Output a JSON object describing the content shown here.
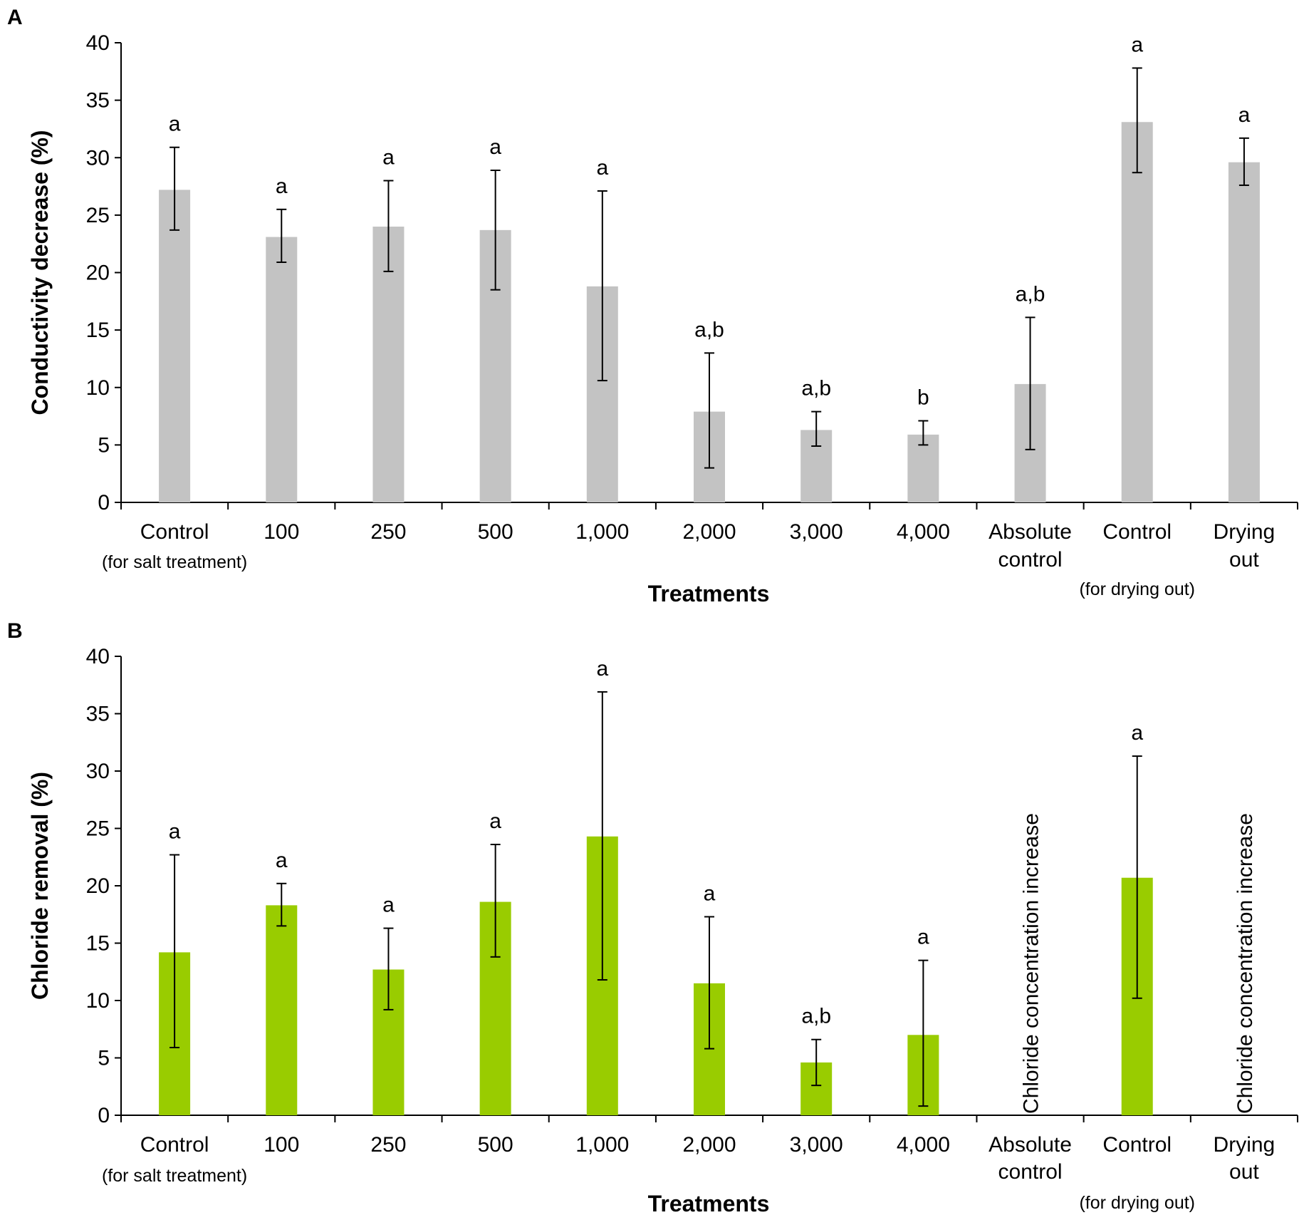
{
  "chart_data": [
    {
      "panel": "A",
      "type": "bar",
      "ylabel": "Conductivity decrease (%)",
      "xlabel": "Treatments",
      "ylim": [
        0,
        40
      ],
      "yticks": [
        0,
        5,
        10,
        15,
        20,
        25,
        30,
        35,
        40
      ],
      "bar_color": "#c3c3c3",
      "categories": [
        "Control",
        "100",
        "250",
        "500",
        "1,000",
        "2,000",
        "3,000",
        "4,000",
        "Absolute\ncontrol",
        "Control",
        "Drying\nout"
      ],
      "group_labels": [
        {
          "text": "(for salt treatment)",
          "category_index": 0
        },
        {
          "text": "(for drying out)",
          "category_index": 9
        }
      ],
      "values": [
        27.2,
        23.1,
        24.0,
        23.7,
        18.8,
        7.9,
        6.3,
        5.9,
        10.3,
        33.1,
        29.6
      ],
      "err_low": [
        23.7,
        20.9,
        20.1,
        18.5,
        10.6,
        3.0,
        4.9,
        5.0,
        4.6,
        28.7,
        27.6
      ],
      "err_high": [
        30.9,
        25.5,
        28.0,
        28.9,
        27.1,
        13.0,
        7.9,
        7.1,
        16.1,
        37.8,
        31.7
      ],
      "sig": [
        "a",
        "a",
        "a",
        "a",
        "a",
        "a,b",
        "a,b",
        "b",
        "a,b",
        "a",
        "a"
      ],
      "notes": []
    },
    {
      "panel": "B",
      "type": "bar",
      "ylabel": "Chloride removal (%)",
      "xlabel": "Treatments",
      "ylim": [
        0,
        40
      ],
      "yticks": [
        0,
        5,
        10,
        15,
        20,
        25,
        30,
        35,
        40
      ],
      "bar_color": "#99cc00",
      "categories": [
        "Control",
        "100",
        "250",
        "500",
        "1,000",
        "2,000",
        "3,000",
        "4,000",
        "Absolute\ncontrol",
        "Control",
        "Drying\nout"
      ],
      "group_labels": [
        {
          "text": "(for salt treatment)",
          "category_index": 0
        },
        {
          "text": "(for drying out)",
          "category_index": 9
        }
      ],
      "values": [
        14.2,
        18.3,
        12.7,
        18.6,
        24.3,
        11.5,
        4.6,
        7.0,
        null,
        20.7,
        null
      ],
      "err_low": [
        5.9,
        16.5,
        9.2,
        13.8,
        11.8,
        5.8,
        2.6,
        0.8,
        null,
        10.2,
        null
      ],
      "err_high": [
        22.7,
        20.2,
        16.3,
        23.6,
        36.9,
        17.3,
        6.6,
        13.5,
        null,
        31.3,
        null
      ],
      "sig": [
        "a",
        "a",
        "a",
        "a",
        "a",
        "a",
        "a,b",
        "a",
        "",
        "a",
        ""
      ],
      "notes": [
        {
          "category_index": 8,
          "text": "Chloride concentration increase"
        },
        {
          "category_index": 10,
          "text": "Chloride concentration increase"
        }
      ]
    }
  ]
}
